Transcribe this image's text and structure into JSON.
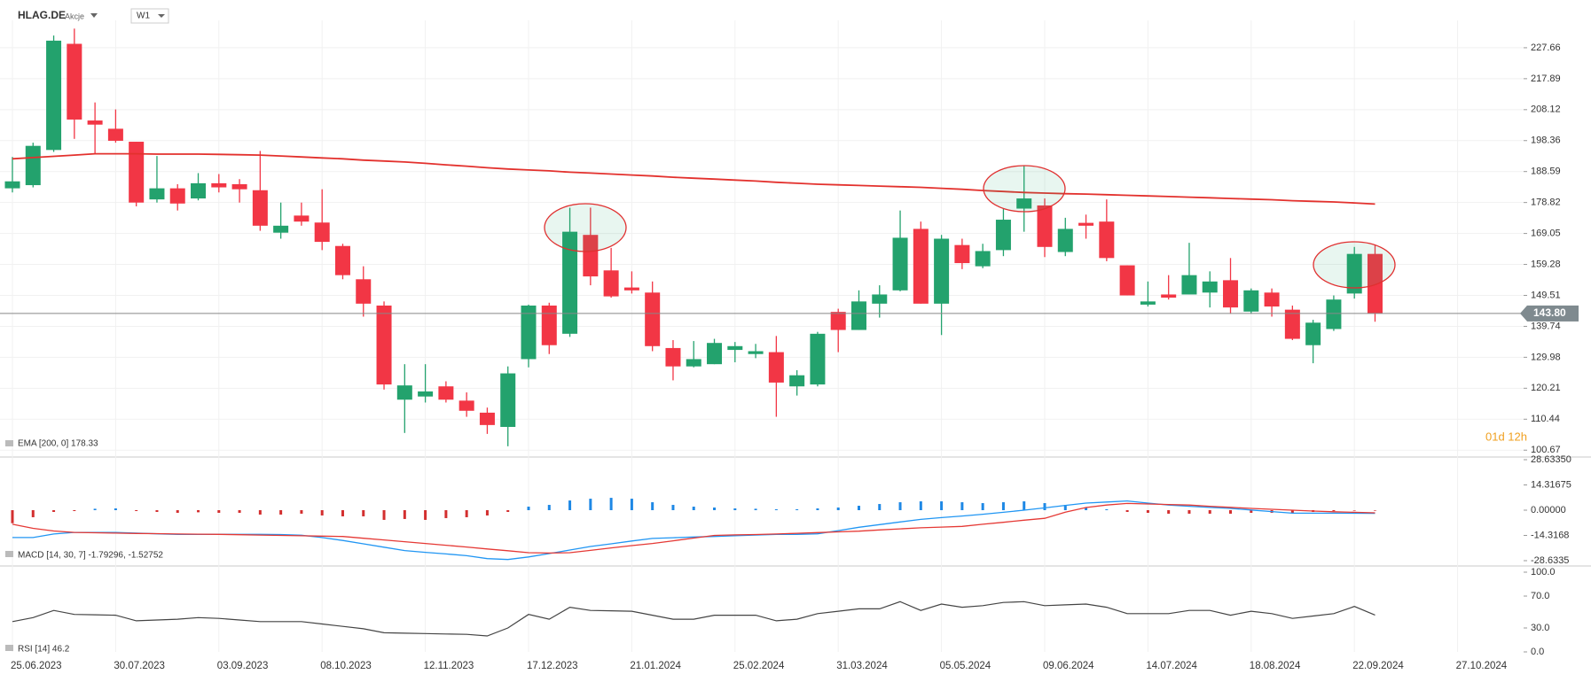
{
  "header": {
    "symbol": "HLAG.DE",
    "kind": "Akcje",
    "interval": "W1"
  },
  "countdown": "01d 12h",
  "chart_data": [
    {
      "type": "candlestick",
      "categories": [
        "25.06.2023",
        null,
        null,
        null,
        null,
        "30.07.2023",
        null,
        null,
        null,
        null,
        "03.09.2023",
        null,
        null,
        null,
        null,
        "08.10.2023",
        null,
        null,
        null,
        null,
        "12.11.2023",
        null,
        null,
        null,
        null,
        "17.12.2023",
        null,
        null,
        null,
        null,
        "21.01.2024",
        null,
        null,
        null,
        null,
        "25.02.2024",
        null,
        null,
        null,
        null,
        "31.03.2024",
        null,
        null,
        null,
        null,
        "05.05.2024",
        null,
        null,
        null,
        null,
        "09.06.2024",
        null,
        null,
        null,
        null,
        "14.07.2024",
        null,
        null,
        null,
        null,
        "18.08.2024",
        null,
        null,
        null,
        null,
        "22.09.2024",
        null,
        null,
        null,
        null,
        "27.10.2024"
      ],
      "open": [
        183.3,
        184.3,
        195.4,
        228.9,
        204.7,
        202.1,
        198.0,
        179.8,
        183.3,
        180.1,
        184.9,
        184.6,
        182.7,
        169.3,
        174.7,
        172.5,
        165.1,
        154.6,
        146.3,
        116.6,
        117.6,
        120.8,
        116.3,
        112.5,
        108.0,
        129.4,
        146.3,
        137.4,
        168.6,
        157.4,
        152.0,
        150.4,
        132.9,
        127.1,
        127.8,
        132.3,
        131.0,
        131.6,
        120.8,
        121.4,
        144.3,
        138.6,
        146.9,
        151.1,
        170.5,
        146.9,
        165.4,
        158.7,
        163.8,
        176.9,
        177.9,
        163.2,
        172.4,
        172.8,
        159.0,
        146.6,
        149.8,
        149.8,
        150.4,
        154.3,
        144.4,
        150.4,
        145.0,
        133.8,
        138.9,
        150.1,
        162.6,
        null,
        null,
        null,
        null
      ],
      "high": [
        193.2,
        197.7,
        231.5,
        233.7,
        210.4,
        208.2,
        198.0,
        193.5,
        184.6,
        188.1,
        187.8,
        186.2,
        195.1,
        178.8,
        178.8,
        183.0,
        165.8,
        158.7,
        147.6,
        127.8,
        127.8,
        122.4,
        118.9,
        114.1,
        127.1,
        146.6,
        147.2,
        177.2,
        177.2,
        164.5,
        157.1,
        153.9,
        135.4,
        135.1,
        135.8,
        134.8,
        134.2,
        136.7,
        125.9,
        138.0,
        145.3,
        151.1,
        152.7,
        176.3,
        172.8,
        168.6,
        167.4,
        165.8,
        176.9,
        190.3,
        180.1,
        174.0,
        175.0,
        179.8,
        159.0,
        153.9,
        155.9,
        166.1,
        157.1,
        161.3,
        151.7,
        151.7,
        146.3,
        141.8,
        149.5,
        164.8,
        165.4,
        null,
        null,
        null,
        null
      ],
      "low": [
        182.0,
        183.6,
        194.8,
        198.9,
        194.2,
        197.7,
        177.6,
        178.8,
        176.3,
        179.5,
        182.0,
        178.8,
        169.9,
        167.4,
        171.5,
        163.8,
        154.6,
        142.8,
        119.8,
        106.1,
        115.7,
        115.7,
        111.2,
        105.8,
        101.9,
        126.8,
        131.0,
        136.4,
        152.7,
        148.8,
        150.1,
        131.9,
        122.7,
        126.8,
        127.8,
        128.4,
        129.7,
        111.2,
        117.9,
        120.8,
        131.6,
        138.6,
        142.5,
        150.8,
        146.9,
        137.0,
        157.8,
        158.1,
        161.9,
        169.6,
        161.6,
        161.9,
        167.4,
        160.3,
        149.5,
        146.0,
        148.2,
        149.8,
        145.7,
        143.7,
        143.7,
        142.8,
        135.4,
        128.1,
        138.3,
        148.5,
        141.2,
        null,
        null,
        null,
        null
      ],
      "close": [
        185.5,
        196.7,
        229.9,
        205.0,
        203.4,
        198.3,
        178.8,
        183.3,
        178.5,
        184.9,
        183.6,
        183.0,
        171.5,
        171.5,
        172.8,
        166.4,
        155.9,
        146.9,
        121.4,
        121.1,
        119.2,
        116.6,
        113.1,
        108.6,
        124.9,
        146.3,
        133.8,
        169.6,
        155.5,
        149.2,
        151.1,
        133.5,
        127.1,
        129.4,
        134.5,
        133.5,
        131.9,
        122.0,
        124.3,
        137.4,
        138.6,
        147.6,
        149.8,
        167.7,
        146.9,
        167.4,
        159.7,
        163.5,
        173.4,
        180.1,
        164.8,
        170.5,
        171.5,
        161.3,
        149.5,
        147.6,
        148.8,
        155.9,
        153.9,
        145.7,
        151.1,
        146.0,
        135.8,
        140.9,
        148.2,
        162.6,
        143.8,
        null,
        null,
        null,
        null
      ],
      "up_color": "#23a26d",
      "down_color": "#f23645",
      "series": [
        {
          "name": "EMA [200, 0] 178.33",
          "color": "#e3312d",
          "values": [
            192.6,
            193.0,
            193.4,
            193.8,
            194.2,
            194.2,
            194.2,
            194.1,
            194.1,
            194.1,
            194.0,
            193.9,
            193.8,
            193.5,
            193.2,
            192.9,
            192.6,
            192.2,
            191.9,
            191.6,
            191.2,
            190.7,
            190.3,
            189.8,
            189.4,
            189.1,
            188.8,
            188.4,
            188.1,
            187.8,
            187.5,
            187.2,
            186.8,
            186.5,
            186.2,
            185.9,
            185.6,
            185.2,
            184.9,
            184.6,
            184.4,
            184.2,
            184.0,
            183.8,
            183.6,
            183.3,
            183.0,
            182.6,
            182.3,
            182.0,
            181.8,
            181.6,
            181.5,
            181.3,
            181.1,
            180.9,
            180.7,
            180.5,
            180.3,
            180.1,
            179.9,
            179.7,
            179.4,
            179.2,
            179.0,
            178.7,
            178.33,
            null,
            null,
            null,
            null
          ]
        }
      ],
      "price_line": {
        "value": 143.8,
        "label": "143.80"
      },
      "ylim": [
        99.06,
        236.3
      ],
      "yticks": [
        227.66,
        217.89,
        208.12,
        198.36,
        188.59,
        178.82,
        169.05,
        159.28,
        149.51,
        139.74,
        129.98,
        120.21,
        110.44,
        100.67
      ],
      "grid": true
    },
    {
      "type": "macd",
      "legend": "MACD [14, 30, 7] -1.79296, -1.52752",
      "histogram": {
        "up_color": "#1e88e5",
        "down_color": "#d32f2f",
        "values": [
          -7.4,
          -4.0,
          -1.0,
          -0.5,
          0.8,
          1.0,
          -0.5,
          -1.0,
          -1.5,
          -1.2,
          -1.5,
          -1.5,
          -2.5,
          -2.5,
          -2.0,
          -3.0,
          -3.5,
          -3.5,
          -5.5,
          -5.0,
          -5.5,
          -4.5,
          -4.0,
          -3.0,
          -1.0,
          2.0,
          3.0,
          5.5,
          6.5,
          7.0,
          6.5,
          4.5,
          3.0,
          2.0,
          1.5,
          1.0,
          0.8,
          0.5,
          0.5,
          1.0,
          1.5,
          2.5,
          3.5,
          4.5,
          5.0,
          5.0,
          4.5,
          4.0,
          4.5,
          5.0,
          4.0,
          3.0,
          1.5,
          0.5,
          -1.0,
          -1.5,
          -2.0,
          -2.0,
          -2.0,
          -2.0,
          -1.5,
          -1.5,
          -1.5,
          -1.0,
          -0.5,
          -0.3,
          -0.3
        ]
      },
      "series": [
        {
          "color": "#2196f3",
          "values": [
            -15.5,
            -15.5,
            -13.5,
            -12.6,
            -12.6,
            -12.6,
            -13.0,
            -13.4,
            -13.7,
            -13.7,
            -13.7,
            -13.7,
            -13.7,
            -13.8,
            -14.2,
            -15.5,
            -17.2,
            -19.1,
            -21.0,
            -22.9,
            -23.9,
            -24.8,
            -25.8,
            -27.5,
            -28.0,
            -26.5,
            -24.6,
            -22.6,
            -20.6,
            -19.1,
            -17.5,
            -16.0,
            -15.6,
            -15.2,
            -14.9,
            -14.5,
            -14.1,
            -13.7,
            -13.7,
            -13.4,
            -11.6,
            -9.7,
            -8.2,
            -6.7,
            -5.2,
            -4.2,
            -3.3,
            -2.3,
            -1.2,
            0.0,
            1.3,
            2.7,
            4.0,
            4.6,
            5.2,
            4.0,
            2.9,
            2.2,
            1.6,
            1.0,
            0.1,
            -0.8,
            -1.7,
            -1.7,
            -1.7,
            -1.75,
            -1.79296
          ]
        },
        {
          "color": "#e53935",
          "values": [
            -8.0,
            -10.3,
            -11.8,
            -12.6,
            -12.8,
            -13.0,
            -13.2,
            -13.3,
            -13.5,
            -13.6,
            -13.7,
            -13.9,
            -14.1,
            -14.3,
            -14.5,
            -14.7,
            -14.9,
            -15.9,
            -16.9,
            -17.9,
            -18.9,
            -19.9,
            -20.9,
            -22.0,
            -23.0,
            -24.1,
            -24.3,
            -24.1,
            -22.8,
            -21.4,
            -20.1,
            -18.9,
            -17.4,
            -15.8,
            -14.3,
            -14.0,
            -13.8,
            -13.5,
            -13.1,
            -12.7,
            -12.3,
            -11.9,
            -11.2,
            -10.6,
            -10.0,
            -9.6,
            -9.2,
            -8.0,
            -6.9,
            -5.7,
            -4.6,
            -1.1,
            1.5,
            2.9,
            3.8,
            3.5,
            3.2,
            2.9,
            2.2,
            1.6,
            1.0,
            0.5,
            0.0,
            -0.5,
            -0.9,
            -1.2,
            -1.52752
          ]
        }
      ],
      "ylim": [
        -28.6335,
        28.6335
      ],
      "yticks": [
        {
          "value": 28.6335,
          "label": "28.63350"
        },
        14.31675,
        {
          "value": 0,
          "label": "0.00000"
        },
        -14.3168,
        -28.6335
      ],
      "grid": false
    },
    {
      "type": "line",
      "legend": "RSI [14] 46.2",
      "series": [
        {
          "color": "#444444",
          "values": [
            38,
            43,
            52,
            47,
            46.5,
            46,
            39,
            40,
            41,
            43,
            42,
            40,
            38,
            38,
            38,
            35,
            32,
            29,
            24,
            23.5,
            23,
            22.5,
            22,
            20,
            30,
            47,
            41,
            56,
            52,
            51.5,
            51,
            46,
            41,
            41,
            46,
            46,
            46,
            39,
            41,
            48,
            51,
            54,
            54,
            63,
            52,
            60,
            56,
            58,
            62,
            63,
            58,
            59,
            60,
            56,
            48,
            48,
            48,
            52,
            52,
            46,
            51,
            48,
            42,
            45,
            48,
            57,
            46.2
          ]
        }
      ],
      "ylim": [
        0,
        100
      ],
      "yticks": [
        {
          "value": 100,
          "label": "100.0"
        },
        {
          "value": 70,
          "label": "70.0"
        },
        {
          "value": 30,
          "label": "30.0"
        },
        {
          "value": 0,
          "label": "0.0"
        }
      ],
      "grid": false
    }
  ]
}
